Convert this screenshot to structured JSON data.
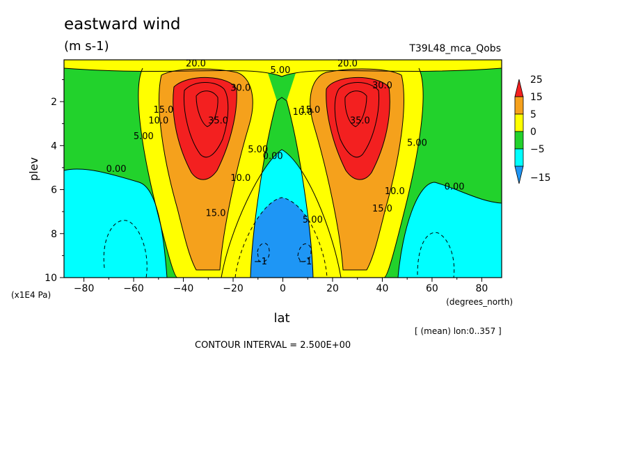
{
  "title": "eastward wind",
  "units": "(m s-1)",
  "run_name": "T39L48_mca_Qobs",
  "stats_text": "[ (mean) lon:0..357 ]",
  "contour_interval": "CONTOUR INTERVAL = 2.500E+00",
  "chart_data": {
    "type": "heatmap",
    "title": "eastward wind",
    "xlabel": "lat",
    "xlabel_units": "(degrees_north)",
    "ylabel": "plev",
    "ylabel_units": "(x1E4 Pa)",
    "xlim": [
      -88,
      88
    ],
    "ylim": [
      10,
      0.1
    ],
    "x_ticks": [
      {
        "value": -80,
        "label": "-80"
      },
      {
        "value": -60,
        "label": "-60"
      },
      {
        "value": -40,
        "label": "-40"
      },
      {
        "value": -20,
        "label": "-20"
      },
      {
        "value": 0,
        "label": "0"
      },
      {
        "value": 20,
        "label": "20"
      },
      {
        "value": 40,
        "label": "40"
      },
      {
        "value": 60,
        "label": "60"
      },
      {
        "value": 80,
        "label": "80"
      }
    ],
    "y_ticks": [
      {
        "value": 2,
        "label": "2"
      },
      {
        "value": 4,
        "label": "4"
      },
      {
        "value": 6,
        "label": "6"
      },
      {
        "value": 8,
        "label": "8"
      },
      {
        "value": 10,
        "label": "10"
      }
    ],
    "colorbar": {
      "labels": [
        "25",
        "15",
        "5",
        "0",
        "-5",
        "-15"
      ],
      "colors": [
        "#f32020",
        "#f5a11c",
        "#ffff00",
        "#22d22c",
        "#00ffff",
        "#1e96f5"
      ]
    },
    "jets": [
      {
        "lat": -30,
        "plev": 2.0,
        "max": 37.5
      },
      {
        "lat": 30,
        "plev": 2.0,
        "max": 37.5
      }
    ],
    "contour_labels": [
      {
        "text": "35.0",
        "lat": -26,
        "plev": 3.0
      },
      {
        "text": "35.0",
        "lat": 31,
        "plev": 3.0
      },
      {
        "text": "30.0",
        "lat": -17,
        "plev": 1.5
      },
      {
        "text": "30.0",
        "lat": 40,
        "plev": 1.4
      },
      {
        "text": "20.0",
        "lat": -35,
        "plev": 0.4
      },
      {
        "text": "20.0",
        "lat": 26,
        "plev": 0.4
      },
      {
        "text": "15.0",
        "lat": -48,
        "plev": 2.5
      },
      {
        "text": "15.0",
        "lat": 11,
        "plev": 2.5
      },
      {
        "text": "15.0",
        "lat": -27,
        "plev": 7.2
      },
      {
        "text": "15.0",
        "lat": 40,
        "plev": 7.0
      },
      {
        "text": "10.0",
        "lat": -50,
        "plev": 3.0
      },
      {
        "text": "10.0",
        "lat": 8,
        "plev": 2.6
      },
      {
        "text": "10.0",
        "lat": -17,
        "plev": 5.6
      },
      {
        "text": "10.0",
        "lat": 45,
        "plev": 6.2
      },
      {
        "text": "5.00",
        "lat": -56,
        "plev": 3.7
      },
      {
        "text": "5.00",
        "lat": 54,
        "plev": 4.0
      },
      {
        "text": "5.00",
        "lat": -10,
        "plev": 4.3
      },
      {
        "text": "5.00",
        "lat": -1,
        "plev": 0.7
      },
      {
        "text": "5.00",
        "lat": 12,
        "plev": 7.5
      },
      {
        "text": "0.00",
        "lat": -67,
        "plev": 5.2
      },
      {
        "text": "0.00",
        "lat": 69,
        "plev": 6.0
      },
      {
        "text": "0.00",
        "lat": -4,
        "plev": 4.6
      },
      {
        "text": "-1",
        "lat": -9,
        "plev": 9.4
      },
      {
        "text": "-1",
        "lat": 9,
        "plev": 9.4
      }
    ]
  }
}
